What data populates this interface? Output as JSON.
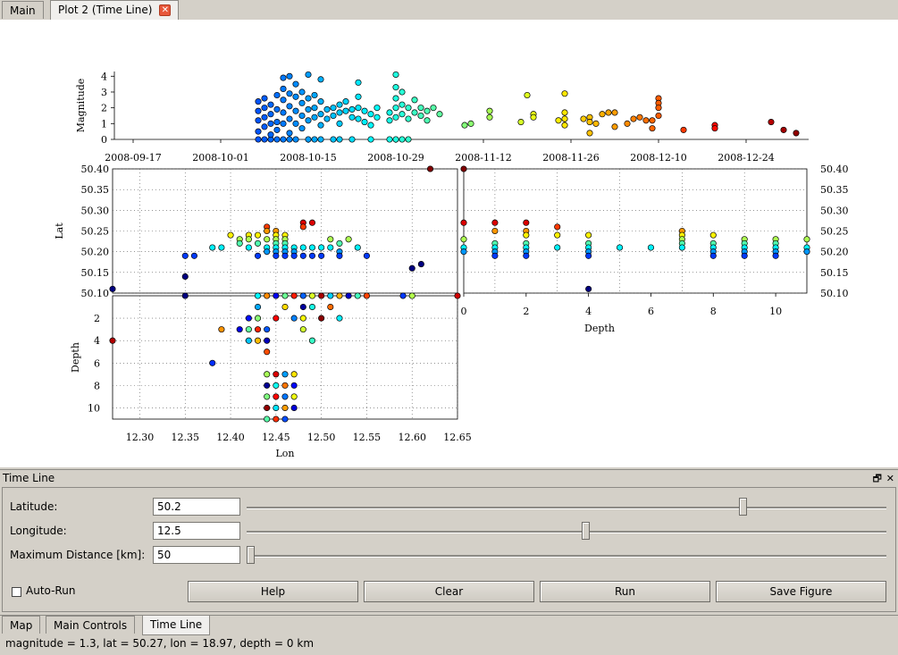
{
  "tabs": [
    {
      "label": "Main",
      "active": false
    },
    {
      "label": "Plot 2 (Time Line)",
      "active": true
    }
  ],
  "tab_close_glyph": "✕",
  "dock": {
    "title": "Time Line",
    "float_glyph": "🗗",
    "close_glyph": "✕",
    "fields": {
      "latitude": {
        "label": "Latitude:",
        "value": "50.2",
        "slider_fraction": 0.78
      },
      "longitude": {
        "label": "Longitude:",
        "value": "12.5",
        "slider_fraction": 0.53
      },
      "max_distance": {
        "label": "Maximum Distance [km]:",
        "value": "50",
        "slider_fraction": 0.0
      }
    },
    "autorun_label": "Auto-Run",
    "autorun_checked": false,
    "buttons": {
      "help": "Help",
      "clear": "Clear",
      "run": "Run",
      "save": "Save Figure"
    }
  },
  "bottom_tabs": [
    {
      "label": "Map",
      "active": false
    },
    {
      "label": "Main Controls",
      "active": false
    },
    {
      "label": "Time Line",
      "active": true
    }
  ],
  "status_text": "magnitude = 1.3, lat = 50.27, lon = 18.97, depth = 0 km",
  "chart_data": [
    {
      "type": "scatter",
      "id": "time-magnitude",
      "ylabel": "Magnitude",
      "xlabel": "",
      "x_tick_labels": [
        "2008-09-17",
        "2008-10-01",
        "2008-10-15",
        "2008-10-29",
        "2008-11-12",
        "2008-11-26",
        "2008-12-10",
        "2008-12-24"
      ],
      "y_ticks": [
        0,
        1,
        2,
        3,
        4
      ],
      "xlim": [
        "2008-09-14",
        "2009-01-03"
      ],
      "ylim": [
        0,
        4.3
      ],
      "color_by": "time",
      "points": [
        [
          "2008-10-07",
          1.8
        ],
        [
          "2008-10-07",
          2.4
        ],
        [
          "2008-10-07",
          1.2
        ],
        [
          "2008-10-07",
          0.5
        ],
        [
          "2008-10-08",
          2.0
        ],
        [
          "2008-10-08",
          1.4
        ],
        [
          "2008-10-08",
          0.8
        ],
        [
          "2008-10-08",
          2.6
        ],
        [
          "2008-10-09",
          2.2
        ],
        [
          "2008-10-09",
          1.0
        ],
        [
          "2008-10-09",
          1.6
        ],
        [
          "2008-10-09",
          0.3
        ],
        [
          "2008-10-10",
          2.8
        ],
        [
          "2008-10-10",
          1.9
        ],
        [
          "2008-10-10",
          1.1
        ],
        [
          "2008-10-10",
          0.6
        ],
        [
          "2008-10-11",
          3.9
        ],
        [
          "2008-10-11",
          3.2
        ],
        [
          "2008-10-11",
          2.5
        ],
        [
          "2008-10-11",
          1.7
        ],
        [
          "2008-10-11",
          1.0
        ],
        [
          "2008-10-12",
          4.0
        ],
        [
          "2008-10-12",
          2.9
        ],
        [
          "2008-10-12",
          2.1
        ],
        [
          "2008-10-12",
          1.3
        ],
        [
          "2008-10-12",
          0.4
        ],
        [
          "2008-10-13",
          3.5
        ],
        [
          "2008-10-13",
          2.7
        ],
        [
          "2008-10-13",
          1.8
        ],
        [
          "2008-10-13",
          1.0
        ],
        [
          "2008-10-14",
          2.3
        ],
        [
          "2008-10-14",
          1.5
        ],
        [
          "2008-10-14",
          3.0
        ],
        [
          "2008-10-14",
          0.7
        ],
        [
          "2008-10-15",
          4.1
        ],
        [
          "2008-10-15",
          2.6
        ],
        [
          "2008-10-15",
          1.9
        ],
        [
          "2008-10-15",
          1.2
        ],
        [
          "2008-10-16",
          2.8
        ],
        [
          "2008-10-16",
          2.0
        ],
        [
          "2008-10-16",
          1.4
        ],
        [
          "2008-10-17",
          3.8
        ],
        [
          "2008-10-17",
          2.4
        ],
        [
          "2008-10-17",
          1.6
        ],
        [
          "2008-10-17",
          0.9
        ],
        [
          "2008-10-18",
          1.9
        ],
        [
          "2008-10-18",
          1.3
        ],
        [
          "2008-10-19",
          2.0
        ],
        [
          "2008-10-19",
          1.5
        ],
        [
          "2008-10-20",
          2.2
        ],
        [
          "2008-10-20",
          1.7
        ],
        [
          "2008-10-20",
          1.0
        ],
        [
          "2008-10-21",
          2.4
        ],
        [
          "2008-10-21",
          1.8
        ],
        [
          "2008-10-22",
          1.9
        ],
        [
          "2008-10-22",
          1.4
        ],
        [
          "2008-10-23",
          3.6
        ],
        [
          "2008-10-23",
          2.7
        ],
        [
          "2008-10-23",
          2.0
        ],
        [
          "2008-10-23",
          1.3
        ],
        [
          "2008-10-24",
          1.8
        ],
        [
          "2008-10-24",
          1.1
        ],
        [
          "2008-10-25",
          1.6
        ],
        [
          "2008-10-25",
          0.9
        ],
        [
          "2008-10-26",
          1.4
        ],
        [
          "2008-10-26",
          2.0
        ],
        [
          "2008-10-28",
          1.2
        ],
        [
          "2008-10-28",
          1.7
        ],
        [
          "2008-10-29",
          4.1
        ],
        [
          "2008-10-29",
          3.3
        ],
        [
          "2008-10-29",
          2.6
        ],
        [
          "2008-10-29",
          2.0
        ],
        [
          "2008-10-29",
          1.4
        ],
        [
          "2008-10-30",
          3.0
        ],
        [
          "2008-10-30",
          2.2
        ],
        [
          "2008-10-30",
          1.6
        ],
        [
          "2008-10-31",
          2.0
        ],
        [
          "2008-10-31",
          1.3
        ],
        [
          "2008-11-01",
          2.5
        ],
        [
          "2008-11-01",
          1.7
        ],
        [
          "2008-11-02",
          1.5
        ],
        [
          "2008-11-02",
          2.0
        ],
        [
          "2008-11-03",
          1.8
        ],
        [
          "2008-11-03",
          1.2
        ],
        [
          "2008-11-04",
          2.0
        ],
        [
          "2008-11-05",
          1.6
        ],
        [
          "2008-11-09",
          0.9
        ],
        [
          "2008-11-10",
          1.0
        ],
        [
          "2008-11-13",
          1.8
        ],
        [
          "2008-11-13",
          1.4
        ],
        [
          "2008-11-18",
          1.1
        ],
        [
          "2008-11-19",
          2.8
        ],
        [
          "2008-11-20",
          1.6
        ],
        [
          "2008-11-20",
          1.4
        ],
        [
          "2008-11-24",
          1.2
        ],
        [
          "2008-11-25",
          2.9
        ],
        [
          "2008-11-25",
          1.7
        ],
        [
          "2008-11-25",
          1.3
        ],
        [
          "2008-11-25",
          0.9
        ],
        [
          "2008-11-28",
          1.3
        ],
        [
          "2008-11-29",
          1.4
        ],
        [
          "2008-11-29",
          1.1
        ],
        [
          "2008-11-29",
          0.4
        ],
        [
          "2008-11-30",
          1.0
        ],
        [
          "2008-12-01",
          1.6
        ],
        [
          "2008-12-02",
          1.7
        ],
        [
          "2008-12-03",
          1.7
        ],
        [
          "2008-12-03",
          0.8
        ],
        [
          "2008-12-05",
          1.0
        ],
        [
          "2008-12-06",
          1.3
        ],
        [
          "2008-12-07",
          1.4
        ],
        [
          "2008-12-08",
          1.2
        ],
        [
          "2008-12-09",
          1.2
        ],
        [
          "2008-12-09",
          0.7
        ],
        [
          "2008-12-10",
          2.6
        ],
        [
          "2008-12-10",
          2.3
        ],
        [
          "2008-12-10",
          2.0
        ],
        [
          "2008-12-10",
          1.5
        ],
        [
          "2008-12-14",
          0.6
        ],
        [
          "2008-12-19",
          0.9
        ],
        [
          "2008-12-19",
          0.7
        ],
        [
          "2008-12-28",
          1.1
        ],
        [
          "2008-12-30",
          0.6
        ],
        [
          "2009-01-01",
          0.4
        ]
      ],
      "zero_mag_points": [
        "2008-10-07",
        "2008-10-08",
        "2008-10-09",
        "2008-10-10",
        "2008-10-11",
        "2008-10-12",
        "2008-10-13",
        "2008-10-15",
        "2008-10-16",
        "2008-10-17",
        "2008-10-19",
        "2008-10-20",
        "2008-10-22",
        "2008-10-25",
        "2008-10-28",
        "2008-10-29",
        "2008-10-30",
        "2008-10-31"
      ]
    },
    {
      "type": "scatter",
      "id": "lon-lat",
      "ylabel": "Lat",
      "xlabel": "",
      "y_tick_labels": [
        "50.10",
        "50.15",
        "50.20",
        "50.25",
        "50.30",
        "50.35",
        "50.40"
      ],
      "xlim": [
        12.27,
        12.65
      ],
      "ylim": [
        50.1,
        50.4
      ],
      "points": [
        [
          12.27,
          50.11
        ],
        [
          12.35,
          50.14
        ],
        [
          12.35,
          50.19
        ],
        [
          12.36,
          50.19
        ],
        [
          12.38,
          50.21
        ],
        [
          12.39,
          50.21
        ],
        [
          12.4,
          50.24
        ],
        [
          12.41,
          50.23
        ],
        [
          12.41,
          50.22
        ],
        [
          12.42,
          50.24
        ],
        [
          12.42,
          50.23
        ],
        [
          12.42,
          50.21
        ],
        [
          12.43,
          50.24
        ],
        [
          12.43,
          50.22
        ],
        [
          12.43,
          50.19
        ],
        [
          12.44,
          50.26
        ],
        [
          12.44,
          50.25
        ],
        [
          12.44,
          50.23
        ],
        [
          12.44,
          50.21
        ],
        [
          12.44,
          50.2
        ],
        [
          12.45,
          50.25
        ],
        [
          12.45,
          50.24
        ],
        [
          12.45,
          50.23
        ],
        [
          12.45,
          50.22
        ],
        [
          12.45,
          50.21
        ],
        [
          12.45,
          50.2
        ],
        [
          12.45,
          50.19
        ],
        [
          12.46,
          50.24
        ],
        [
          12.46,
          50.23
        ],
        [
          12.46,
          50.22
        ],
        [
          12.46,
          50.21
        ],
        [
          12.46,
          50.2
        ],
        [
          12.46,
          50.19
        ],
        [
          12.47,
          50.21
        ],
        [
          12.47,
          50.2
        ],
        [
          12.47,
          50.19
        ],
        [
          12.48,
          50.27
        ],
        [
          12.48,
          50.26
        ],
        [
          12.48,
          50.21
        ],
        [
          12.48,
          50.19
        ],
        [
          12.49,
          50.27
        ],
        [
          12.49,
          50.21
        ],
        [
          12.49,
          50.19
        ],
        [
          12.5,
          50.21
        ],
        [
          12.5,
          50.19
        ],
        [
          12.51,
          50.23
        ],
        [
          12.51,
          50.21
        ],
        [
          12.52,
          50.22
        ],
        [
          12.52,
          50.2
        ],
        [
          12.52,
          50.19
        ],
        [
          12.53,
          50.23
        ],
        [
          12.54,
          50.21
        ],
        [
          12.55,
          50.19
        ],
        [
          12.6,
          50.16
        ],
        [
          12.61,
          50.17
        ],
        [
          12.62,
          50.4
        ]
      ]
    },
    {
      "type": "scatter",
      "id": "depth-lat",
      "ylabel": "",
      "xlabel": "Depth",
      "x_tick_labels": [
        "0",
        "2",
        "4",
        "6",
        "8",
        "10"
      ],
      "y_tick_labels": [
        "50.10",
        "50.15",
        "50.20",
        "50.25",
        "50.30",
        "50.35",
        "50.40"
      ],
      "xlim": [
        0,
        11
      ],
      "ylim": [
        50.1,
        50.4
      ],
      "points": [
        [
          0,
          50.27
        ],
        [
          0,
          50.23
        ],
        [
          0,
          50.21
        ],
        [
          0,
          50.2
        ],
        [
          0,
          50.4
        ],
        [
          1,
          50.27
        ],
        [
          1,
          50.25
        ],
        [
          1,
          50.22
        ],
        [
          1,
          50.21
        ],
        [
          1,
          50.2
        ],
        [
          1,
          50.19
        ],
        [
          2,
          50.27
        ],
        [
          2,
          50.25
        ],
        [
          2,
          50.24
        ],
        [
          2,
          50.22
        ],
        [
          2,
          50.21
        ],
        [
          2,
          50.2
        ],
        [
          2,
          50.19
        ],
        [
          3,
          50.26
        ],
        [
          3,
          50.24
        ],
        [
          3,
          50.21
        ],
        [
          4,
          50.24
        ],
        [
          4,
          50.22
        ],
        [
          4,
          50.21
        ],
        [
          4,
          50.2
        ],
        [
          4,
          50.19
        ],
        [
          4,
          50.11
        ],
        [
          5,
          50.21
        ],
        [
          6,
          50.21
        ],
        [
          7,
          50.25
        ],
        [
          7,
          50.24
        ],
        [
          7,
          50.23
        ],
        [
          7,
          50.22
        ],
        [
          7,
          50.21
        ],
        [
          8,
          50.24
        ],
        [
          8,
          50.22
        ],
        [
          8,
          50.21
        ],
        [
          8,
          50.2
        ],
        [
          8,
          50.19
        ],
        [
          9,
          50.23
        ],
        [
          9,
          50.22
        ],
        [
          9,
          50.21
        ],
        [
          9,
          50.2
        ],
        [
          9,
          50.19
        ],
        [
          10,
          50.23
        ],
        [
          10,
          50.22
        ],
        [
          10,
          50.21
        ],
        [
          10,
          50.2
        ],
        [
          10,
          50.19
        ],
        [
          11,
          50.23
        ],
        [
          11,
          50.21
        ],
        [
          11,
          50.2
        ]
      ]
    },
    {
      "type": "scatter",
      "id": "lon-depth",
      "ylabel": "Depth",
      "xlabel": "Lon",
      "x_tick_labels": [
        "12.30",
        "12.35",
        "12.40",
        "12.45",
        "12.50",
        "12.55",
        "12.60",
        "12.65"
      ],
      "y_tick_labels": [
        "2",
        "4",
        "6",
        "8",
        "10"
      ],
      "xlim": [
        12.27,
        12.65
      ],
      "ylim": [
        11,
        0
      ],
      "points": [
        [
          12.35,
          0
        ],
        [
          12.43,
          0
        ],
        [
          12.44,
          0
        ],
        [
          12.45,
          0
        ],
        [
          12.46,
          0
        ],
        [
          12.47,
          0
        ],
        [
          12.48,
          0
        ],
        [
          12.49,
          0
        ],
        [
          12.5,
          0
        ],
        [
          12.51,
          0
        ],
        [
          12.52,
          0
        ],
        [
          12.53,
          0
        ],
        [
          12.54,
          0
        ],
        [
          12.55,
          0
        ],
        [
          12.59,
          0
        ],
        [
          12.6,
          0
        ],
        [
          12.65,
          0
        ],
        [
          12.43,
          1
        ],
        [
          12.46,
          1
        ],
        [
          12.48,
          1
        ],
        [
          12.49,
          1
        ],
        [
          12.51,
          1
        ],
        [
          12.42,
          2
        ],
        [
          12.43,
          2
        ],
        [
          12.45,
          2
        ],
        [
          12.47,
          2
        ],
        [
          12.48,
          2
        ],
        [
          12.5,
          2
        ],
        [
          12.52,
          2
        ],
        [
          12.39,
          3
        ],
        [
          12.41,
          3
        ],
        [
          12.42,
          3
        ],
        [
          12.43,
          3
        ],
        [
          12.44,
          3
        ],
        [
          12.48,
          3
        ],
        [
          12.27,
          4
        ],
        [
          12.42,
          4
        ],
        [
          12.43,
          4
        ],
        [
          12.44,
          4
        ],
        [
          12.49,
          4
        ],
        [
          12.44,
          5
        ],
        [
          12.38,
          6
        ],
        [
          12.44,
          7
        ],
        [
          12.45,
          7
        ],
        [
          12.46,
          7
        ],
        [
          12.47,
          7
        ],
        [
          12.44,
          8
        ],
        [
          12.45,
          8
        ],
        [
          12.46,
          8
        ],
        [
          12.47,
          8
        ],
        [
          12.44,
          9
        ],
        [
          12.45,
          9
        ],
        [
          12.46,
          9
        ],
        [
          12.47,
          9
        ],
        [
          12.44,
          10
        ],
        [
          12.45,
          10
        ],
        [
          12.46,
          10
        ],
        [
          12.47,
          10
        ],
        [
          12.44,
          11
        ],
        [
          12.45,
          11
        ],
        [
          12.46,
          11
        ]
      ]
    }
  ]
}
